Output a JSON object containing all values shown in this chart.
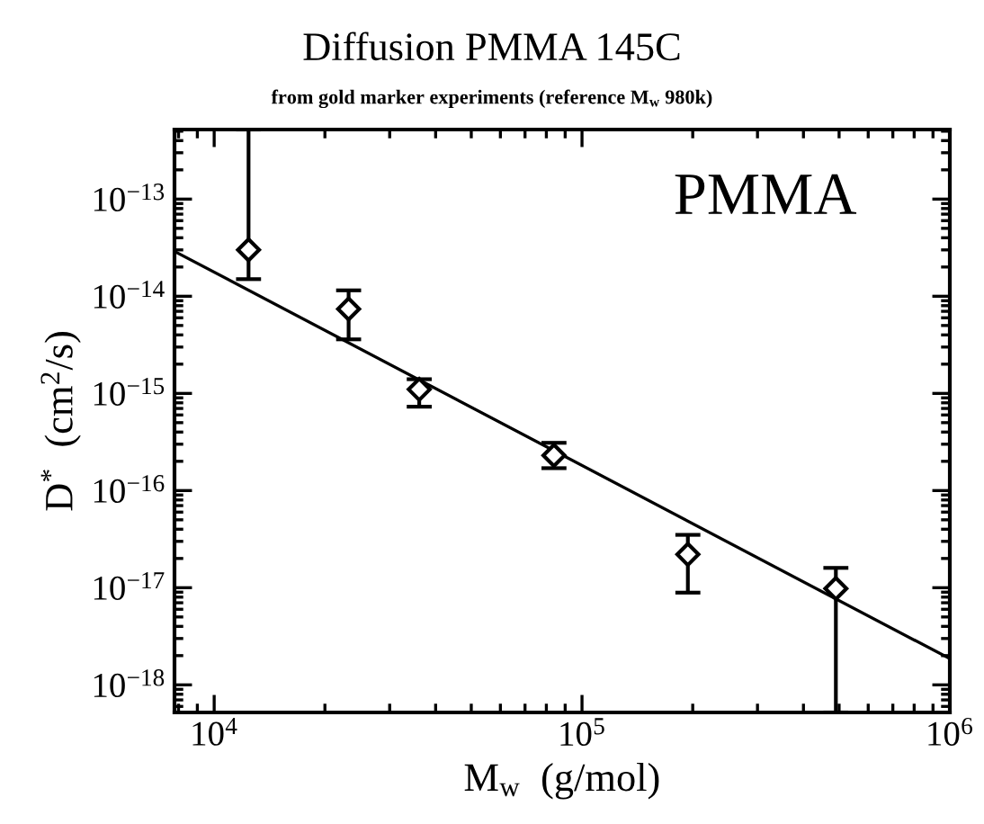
{
  "chart_data": {
    "type": "scatter",
    "title": "Diffusion PMMA 145C",
    "subtitle": "from gold marker experiments (reference M$_{w}$ 980k)",
    "xlabel": "M$_{w}$  (g/mol)",
    "ylabel": "D$^{*}$  (cm$^{2}$/s)",
    "log": "xy",
    "grid": false,
    "legend": false,
    "marker": "diamond",
    "xlim": [
      7800,
      1000000
    ],
    "ylim": [
      5.2e-19,
      5.2e-13
    ],
    "xticks": [
      {
        "value": 10000,
        "label": "10$^{4}$"
      },
      {
        "value": 100000,
        "label": "10$^{5}$"
      },
      {
        "value": 1000000,
        "label": "10$^{6}$"
      }
    ],
    "yticks": [
      {
        "value": 1e-13,
        "label": "10$^{−13}$"
      },
      {
        "value": 1e-14,
        "label": "10$^{−14}$"
      },
      {
        "value": 1e-15,
        "label": "10$^{−15}$"
      },
      {
        "value": 1e-16,
        "label": "10$^{−16}$"
      },
      {
        "value": 1e-17,
        "label": "10$^{−17}$"
      },
      {
        "value": 1e-18,
        "label": "10$^{−18}$"
      }
    ],
    "annotations": [
      "PMMA"
    ],
    "series": [
      {
        "color": "#000000",
        "x": [
          12400,
          23200,
          36100,
          83900,
          194000,
          490000
        ],
        "values": [
          3e-14,
          7.4e-15,
          1.1e-15,
          2.3e-16,
          2.2e-17,
          9.8e-18
        ],
        "errors": [
          [
            1.5e-14,
            5.2e-13
          ],
          [
            3.6e-15,
            1.15e-14
          ],
          [
            7.3e-16,
            1.4e-15
          ],
          [
            1.7e-16,
            3.1e-16
          ],
          [
            8.9e-18,
            3.5e-17
          ],
          [
            5.2e-19,
            1.6e-17
          ]
        ]
      },
      {
        "type": "line",
        "color": "#000000",
        "marker": "none",
        "line_style": "solid",
        "x": [
          7800,
          1000000
        ],
        "values": [
          2.9e-14,
          1.86e-18
        ]
      }
    ]
  }
}
